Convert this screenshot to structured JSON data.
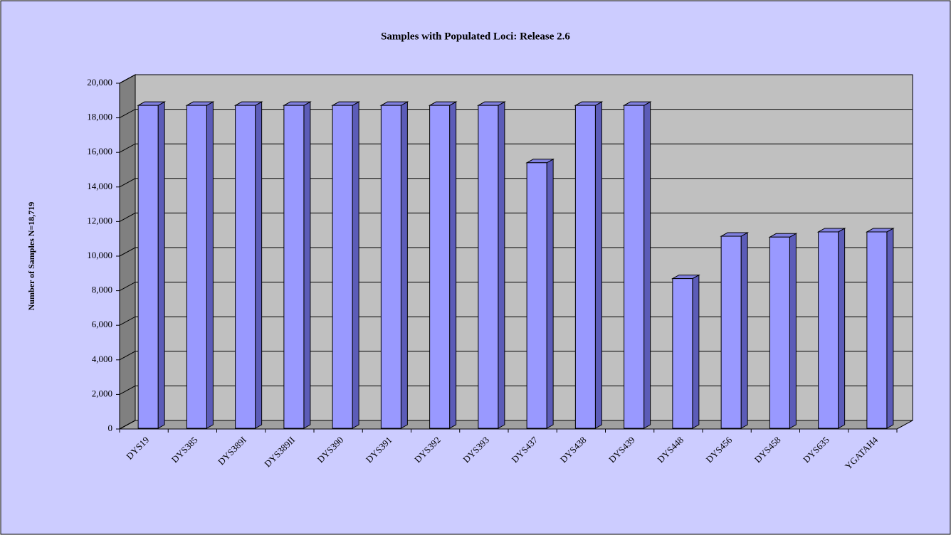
{
  "chart_data": {
    "type": "bar",
    "title": "Samples with Populated Loci: Release 2.6",
    "y_label": "Number of Samples N=18,719",
    "categories": [
      "DYS19",
      "DYS385",
      "DYS389I",
      "DYS389II",
      "DYS390",
      "DYS391",
      "DYS392",
      "DYS393",
      "DYS437",
      "DYS438",
      "DYS439",
      "DYS448",
      "DYS456",
      "DYS458",
      "DYS635",
      "YGATAH4"
    ],
    "values": [
      18719,
      18719,
      18719,
      18719,
      18719,
      18719,
      18719,
      18719,
      15400,
      18719,
      18719,
      8700,
      11150,
      11100,
      11400,
      11400
    ],
    "color": "#9999ff",
    "ylim": [
      0,
      20000
    ],
    "yticks": [
      0,
      {
        "value": 2000,
        "label": "2,000"
      },
      {
        "value": 4000,
        "label": "4,000"
      },
      {
        "value": 6000,
        "label": "6,000"
      },
      {
        "value": 8000,
        "label": "8,000"
      },
      {
        "value": 10000,
        "label": "10,000"
      },
      {
        "value": 12000,
        "label": "12,000"
      },
      {
        "value": 14000,
        "label": "14,000"
      },
      {
        "value": 16000,
        "label": "16,000"
      },
      {
        "value": 18000,
        "label": "18,000"
      },
      {
        "value": 20000,
        "label": "20,000"
      }
    ],
    "grid": true
  }
}
